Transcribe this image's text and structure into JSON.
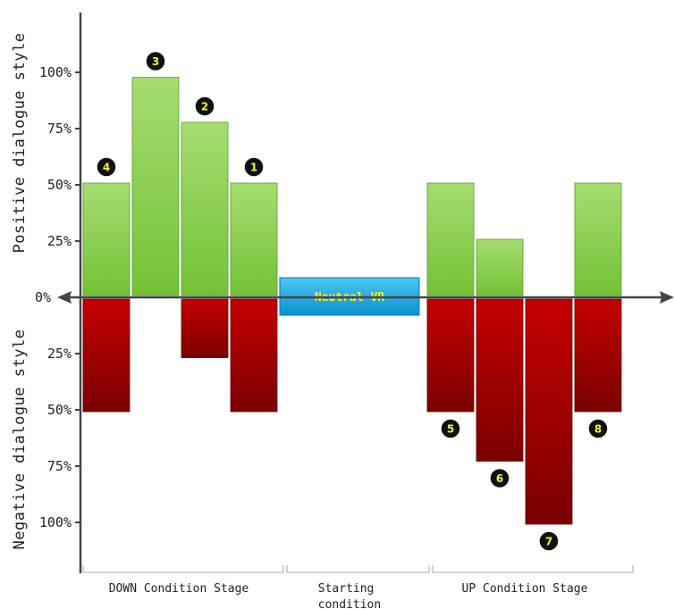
{
  "chart_data": {
    "type": "bar",
    "subtype": "diverging-stacked",
    "title": "",
    "ylabel_positive": "Positive dialogue style",
    "ylabel_negative": "Negative dialogue style",
    "yticks_positive": [
      "0%",
      "25%",
      "50%",
      "75%",
      "100%"
    ],
    "yticks_negative": [
      "25%",
      "50%",
      "75%",
      "100%"
    ],
    "ylim": [
      -100,
      100
    ],
    "unit": "%",
    "grid": false,
    "colors": {
      "positive": "#7ccb3f",
      "negative": "#b40000",
      "neutral": "#1eaee0",
      "badge_bg": "#111111",
      "badge_text": "#f5f232",
      "axis": "#444444"
    },
    "bars": [
      {
        "slot": 0,
        "positive": 50,
        "negative": 50,
        "badge": "4",
        "badge_side": "positive"
      },
      {
        "slot": 1,
        "positive": 97,
        "negative": 0,
        "badge": "3",
        "badge_side": "positive"
      },
      {
        "slot": 2,
        "positive": 77,
        "negative": 26,
        "badge": "2",
        "badge_side": "positive"
      },
      {
        "slot": 3,
        "positive": 50,
        "negative": 50,
        "badge": "1",
        "badge_side": "positive"
      },
      {
        "slot": 7,
        "positive": 50,
        "negative": 50,
        "badge": "5",
        "badge_side": "negative"
      },
      {
        "slot": 8,
        "positive": 25,
        "negative": 72,
        "badge": "6",
        "badge_side": "negative"
      },
      {
        "slot": 9,
        "positive": 0,
        "negative": 100,
        "badge": "7",
        "badge_side": "negative"
      },
      {
        "slot": 10,
        "positive": 50,
        "negative": 50,
        "badge": "8",
        "badge_side": "negative"
      }
    ],
    "neutral": {
      "label": "Neutral VR"
    },
    "stages": [
      {
        "label": "DOWN Condition Stage"
      },
      {
        "label": "Starting condition"
      },
      {
        "label": "UP Condition Stage"
      }
    ]
  }
}
